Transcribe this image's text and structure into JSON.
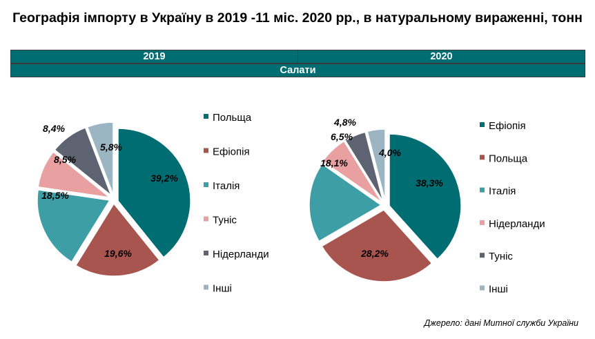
{
  "title": "Географія імпорту в Україну в 2019 -11 міс. 2020 рр., в натуральному вираженні, тонн",
  "header": {
    "years": [
      "2019",
      "2020"
    ],
    "category": "Салати"
  },
  "source": "Джерело: дані Митної служби України",
  "chart_data": [
    {
      "type": "pie",
      "year": "2019",
      "categories": [
        "Польща",
        "Ефіопія",
        "Італія",
        "Туніс",
        "Нідерланди",
        "Інші"
      ],
      "values": [
        39.2,
        19.6,
        18.5,
        8.5,
        8.4,
        5.8
      ],
      "labels": [
        "39,2%",
        "19,6%",
        "18,5%",
        "8,5%",
        "8,4%",
        "5,8%"
      ],
      "colors": [
        "#006d73",
        "#a8554f",
        "#3e9ea6",
        "#e8a0a0",
        "#5d6370",
        "#9cb5c3"
      ],
      "legend": "right"
    },
    {
      "type": "pie",
      "year": "2020",
      "categories": [
        "Ефіопія",
        "Польща",
        "Італія",
        "Нідерланди",
        "Туніс",
        "Інші"
      ],
      "values": [
        38.3,
        28.2,
        18.1,
        6.5,
        4.8,
        4.0
      ],
      "labels": [
        "38,3%",
        "28,2%",
        "18,1%",
        "6,5%",
        "4,8%",
        "4,0%"
      ],
      "colors": [
        "#006d73",
        "#a8554f",
        "#3e9ea6",
        "#e8a0a0",
        "#5d6370",
        "#9cb5c3"
      ],
      "legend": "right"
    }
  ]
}
